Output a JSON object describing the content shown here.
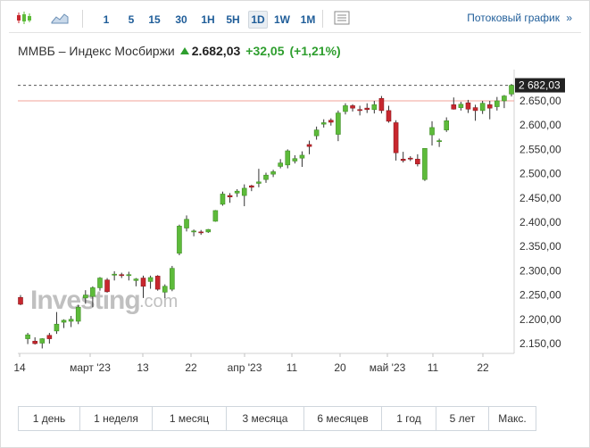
{
  "toolbar": {
    "timeframes": [
      "1",
      "5",
      "15",
      "30",
      "1H",
      "5H",
      "1D",
      "1W",
      "1M"
    ],
    "active_timeframe": "1D",
    "stream_link": "Потоковый график",
    "stream_chevron": "»"
  },
  "header": {
    "name": "ММВБ – Индекс Мосбиржи",
    "price": "2.682,03",
    "change": "+32,05",
    "change_pct": "(+1,21%)",
    "up_color": "#2e9e2e"
  },
  "watermark": {
    "brand": "Investing",
    "suffix": ".com"
  },
  "range_buttons": [
    "1 день",
    "1 неделя",
    "1 месяц",
    "3 месяца",
    "6 месяцев",
    "1 год",
    "5 лет",
    "Макс."
  ],
  "chart_data": {
    "type": "candlestick",
    "title": "ММВБ – Индекс Мосбиржи",
    "y_ticks": [
      "2.150,00",
      "2.200,00",
      "2.250,00",
      "2.300,00",
      "2.350,00",
      "2.400,00",
      "2.450,00",
      "2.500,00",
      "2.550,00",
      "2.600,00",
      "2.650,00"
    ],
    "ylim": [
      2130,
      2690
    ],
    "x_ticks": [
      "14",
      "март '23",
      "13",
      "22",
      "апр '23",
      "11",
      "20",
      "май '23",
      "11",
      "22"
    ],
    "last_price_label": "2 682,03",
    "last_price": 2682.03,
    "reference_line": 2649.98,
    "colors": {
      "up": "#5dbb3a",
      "down": "#c8272e",
      "reference": "#f2a39a",
      "last_price_line": "#555555"
    },
    "candles": [
      {
        "o": 2245,
        "h": 2250,
        "l": 2229,
        "c": 2231
      },
      {
        "o": 2160,
        "h": 2172,
        "l": 2149,
        "c": 2168
      },
      {
        "o": 2155,
        "h": 2163,
        "l": 2148,
        "c": 2150
      },
      {
        "o": 2151,
        "h": 2161,
        "l": 2140,
        "c": 2160
      },
      {
        "o": 2167,
        "h": 2172,
        "l": 2150,
        "c": 2160
      },
      {
        "o": 2176,
        "h": 2215,
        "l": 2170,
        "c": 2190
      },
      {
        "o": 2194,
        "h": 2200,
        "l": 2182,
        "c": 2198
      },
      {
        "o": 2196,
        "h": 2207,
        "l": 2184,
        "c": 2200
      },
      {
        "o": 2196,
        "h": 2230,
        "l": 2190,
        "c": 2225
      },
      {
        "o": 2244,
        "h": 2260,
        "l": 2232,
        "c": 2250
      },
      {
        "o": 2247,
        "h": 2268,
        "l": 2225,
        "c": 2265
      },
      {
        "o": 2265,
        "h": 2287,
        "l": 2259,
        "c": 2285
      },
      {
        "o": 2281,
        "h": 2285,
        "l": 2255,
        "c": 2257
      },
      {
        "o": 2291,
        "h": 2299,
        "l": 2280,
        "c": 2293
      },
      {
        "o": 2292,
        "h": 2296,
        "l": 2285,
        "c": 2290
      },
      {
        "o": 2290,
        "h": 2298,
        "l": 2280,
        "c": 2292
      },
      {
        "o": 2280,
        "h": 2285,
        "l": 2268,
        "c": 2283
      },
      {
        "o": 2285,
        "h": 2290,
        "l": 2244,
        "c": 2268
      },
      {
        "o": 2278,
        "h": 2290,
        "l": 2263,
        "c": 2286
      },
      {
        "o": 2289,
        "h": 2291,
        "l": 2259,
        "c": 2262
      },
      {
        "o": 2256,
        "h": 2272,
        "l": 2244,
        "c": 2268
      },
      {
        "o": 2262,
        "h": 2310,
        "l": 2258,
        "c": 2305
      },
      {
        "o": 2336,
        "h": 2395,
        "l": 2332,
        "c": 2392
      },
      {
        "o": 2388,
        "h": 2414,
        "l": 2381,
        "c": 2406
      },
      {
        "o": 2380,
        "h": 2385,
        "l": 2371,
        "c": 2382
      },
      {
        "o": 2380,
        "h": 2384,
        "l": 2374,
        "c": 2379
      },
      {
        "o": 2380,
        "h": 2386,
        "l": 2378,
        "c": 2385
      },
      {
        "o": 2402,
        "h": 2425,
        "l": 2401,
        "c": 2424
      },
      {
        "o": 2437,
        "h": 2463,
        "l": 2434,
        "c": 2458
      },
      {
        "o": 2455,
        "h": 2460,
        "l": 2440,
        "c": 2452
      },
      {
        "o": 2460,
        "h": 2468,
        "l": 2452,
        "c": 2464
      },
      {
        "o": 2455,
        "h": 2478,
        "l": 2433,
        "c": 2470
      },
      {
        "o": 2475,
        "h": 2477,
        "l": 2464,
        "c": 2472
      },
      {
        "o": 2480,
        "h": 2510,
        "l": 2472,
        "c": 2483
      },
      {
        "o": 2488,
        "h": 2502,
        "l": 2481,
        "c": 2497
      },
      {
        "o": 2499,
        "h": 2508,
        "l": 2493,
        "c": 2504
      },
      {
        "o": 2515,
        "h": 2530,
        "l": 2511,
        "c": 2522
      },
      {
        "o": 2518,
        "h": 2550,
        "l": 2511,
        "c": 2547
      },
      {
        "o": 2526,
        "h": 2538,
        "l": 2521,
        "c": 2531
      },
      {
        "o": 2532,
        "h": 2546,
        "l": 2514,
        "c": 2538
      },
      {
        "o": 2560,
        "h": 2568,
        "l": 2540,
        "c": 2556
      },
      {
        "o": 2578,
        "h": 2597,
        "l": 2570,
        "c": 2590
      },
      {
        "o": 2602,
        "h": 2612,
        "l": 2595,
        "c": 2605
      },
      {
        "o": 2610,
        "h": 2614,
        "l": 2599,
        "c": 2606
      },
      {
        "o": 2581,
        "h": 2630,
        "l": 2567,
        "c": 2625
      },
      {
        "o": 2628,
        "h": 2645,
        "l": 2622,
        "c": 2640
      },
      {
        "o": 2640,
        "h": 2643,
        "l": 2628,
        "c": 2635
      },
      {
        "o": 2632,
        "h": 2640,
        "l": 2620,
        "c": 2630
      },
      {
        "o": 2635,
        "h": 2645,
        "l": 2625,
        "c": 2632
      },
      {
        "o": 2632,
        "h": 2650,
        "l": 2624,
        "c": 2642
      },
      {
        "o": 2655,
        "h": 2660,
        "l": 2624,
        "c": 2630
      },
      {
        "o": 2630,
        "h": 2640,
        "l": 2605,
        "c": 2608
      },
      {
        "o": 2605,
        "h": 2610,
        "l": 2527,
        "c": 2543
      },
      {
        "o": 2530,
        "h": 2545,
        "l": 2523,
        "c": 2527
      },
      {
        "o": 2532,
        "h": 2536,
        "l": 2526,
        "c": 2530
      },
      {
        "o": 2530,
        "h": 2540,
        "l": 2515,
        "c": 2520
      },
      {
        "o": 2488,
        "h": 2552,
        "l": 2485,
        "c": 2552
      },
      {
        "o": 2580,
        "h": 2608,
        "l": 2558,
        "c": 2595
      },
      {
        "o": 2566,
        "h": 2572,
        "l": 2555,
        "c": 2568
      },
      {
        "o": 2590,
        "h": 2616,
        "l": 2586,
        "c": 2609
      },
      {
        "o": 2642,
        "h": 2657,
        "l": 2632,
        "c": 2633
      },
      {
        "o": 2636,
        "h": 2648,
        "l": 2630,
        "c": 2643
      },
      {
        "o": 2646,
        "h": 2652,
        "l": 2625,
        "c": 2633
      },
      {
        "o": 2636,
        "h": 2642,
        "l": 2609,
        "c": 2630
      },
      {
        "o": 2630,
        "h": 2650,
        "l": 2623,
        "c": 2645
      },
      {
        "o": 2642,
        "h": 2650,
        "l": 2612,
        "c": 2635
      },
      {
        "o": 2638,
        "h": 2658,
        "l": 2630,
        "c": 2650
      },
      {
        "o": 2650,
        "h": 2662,
        "l": 2635,
        "c": 2660
      },
      {
        "o": 2664,
        "h": 2685,
        "l": 2659,
        "c": 2682
      }
    ]
  }
}
